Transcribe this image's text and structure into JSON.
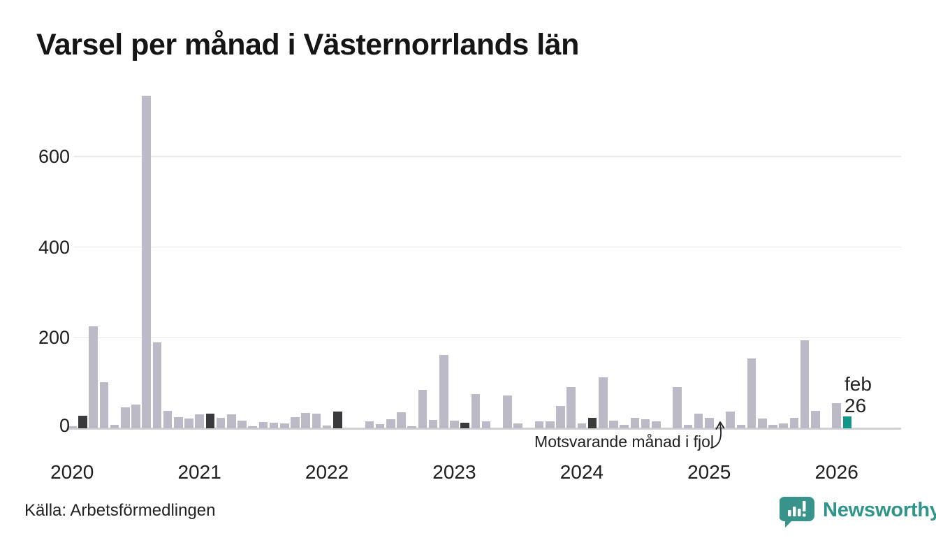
{
  "title": "Varsel per månad i Västernorrlands län",
  "source": "Källa: Arbetsförmedlingen",
  "brand": {
    "name": "Newsworthy",
    "color": "#2f948a"
  },
  "annotation": {
    "text": "Motsvarande månad i fjol",
    "target_month": "2025-02"
  },
  "highlight_label": {
    "line1": "feb",
    "line2": "26"
  },
  "colors": {
    "bar": "#bdbac8",
    "bar_last_year": "#3a393c",
    "bar_highlight": "#11978a",
    "grid": "#e9e7ec",
    "axis_line": "#d2d0d6",
    "text": "#1a1a1a"
  },
  "chart_data": {
    "type": "bar",
    "title": "Varsel per månad i Västernorrlands län",
    "ylabel": "",
    "xlabel": "",
    "yticks": [
      0,
      200,
      400,
      600
    ],
    "ylim": [
      0,
      760
    ],
    "grid": "horizontal",
    "legend": "none",
    "year_ticks": [
      {
        "label": "2020",
        "month_index": 0
      },
      {
        "label": "2021",
        "month_index": 12
      },
      {
        "label": "2022",
        "month_index": 24
      },
      {
        "label": "2023",
        "month_index": 36
      },
      {
        "label": "2024",
        "month_index": 48
      },
      {
        "label": "2025",
        "month_index": 60
      },
      {
        "label": "2026",
        "month_index": 72
      }
    ],
    "series_name": "Varsel per månad",
    "months": [
      {
        "m": "2020-01",
        "v": 5
      },
      {
        "m": "2020-02",
        "v": 27,
        "role": "last_year"
      },
      {
        "m": "2020-03",
        "v": 225
      },
      {
        "m": "2020-04",
        "v": 102
      },
      {
        "m": "2020-05",
        "v": 8
      },
      {
        "m": "2020-06",
        "v": 46
      },
      {
        "m": "2020-07",
        "v": 52
      },
      {
        "m": "2020-08",
        "v": 734
      },
      {
        "m": "2020-09",
        "v": 189
      },
      {
        "m": "2020-10",
        "v": 38
      },
      {
        "m": "2020-11",
        "v": 25
      },
      {
        "m": "2020-12",
        "v": 22
      },
      {
        "m": "2021-01",
        "v": 31
      },
      {
        "m": "2021-02",
        "v": 32,
        "role": "last_year"
      },
      {
        "m": "2021-03",
        "v": 23
      },
      {
        "m": "2021-04",
        "v": 31
      },
      {
        "m": "2021-05",
        "v": 17
      },
      {
        "m": "2021-06",
        "v": 5
      },
      {
        "m": "2021-07",
        "v": 14
      },
      {
        "m": "2021-08",
        "v": 12
      },
      {
        "m": "2021-09",
        "v": 11
      },
      {
        "m": "2021-10",
        "v": 25
      },
      {
        "m": "2021-11",
        "v": 34
      },
      {
        "m": "2021-12",
        "v": 32
      },
      {
        "m": "2022-01",
        "v": 6
      },
      {
        "m": "2022-02",
        "v": 37,
        "role": "last_year"
      },
      {
        "m": "2022-03",
        "v": 0
      },
      {
        "m": "2022-04",
        "v": 0
      },
      {
        "m": "2022-05",
        "v": 15
      },
      {
        "m": "2022-06",
        "v": 9
      },
      {
        "m": "2022-07",
        "v": 20
      },
      {
        "m": "2022-08",
        "v": 35
      },
      {
        "m": "2022-09",
        "v": 5
      },
      {
        "m": "2022-10",
        "v": 85
      },
      {
        "m": "2022-11",
        "v": 18
      },
      {
        "m": "2022-12",
        "v": 162
      },
      {
        "m": "2023-01",
        "v": 17
      },
      {
        "m": "2023-02",
        "v": 12,
        "role": "last_year"
      },
      {
        "m": "2023-03",
        "v": 75
      },
      {
        "m": "2023-04",
        "v": 15
      },
      {
        "m": "2023-05",
        "v": 0
      },
      {
        "m": "2023-06",
        "v": 72
      },
      {
        "m": "2023-07",
        "v": 11
      },
      {
        "m": "2023-08",
        "v": 0
      },
      {
        "m": "2023-09",
        "v": 15
      },
      {
        "m": "2023-10",
        "v": 15
      },
      {
        "m": "2023-11",
        "v": 49
      },
      {
        "m": "2023-12",
        "v": 91
      },
      {
        "m": "2024-01",
        "v": 11
      },
      {
        "m": "2024-02",
        "v": 23,
        "role": "last_year"
      },
      {
        "m": "2024-03",
        "v": 112
      },
      {
        "m": "2024-04",
        "v": 17
      },
      {
        "m": "2024-05",
        "v": 8
      },
      {
        "m": "2024-06",
        "v": 23
      },
      {
        "m": "2024-07",
        "v": 20
      },
      {
        "m": "2024-08",
        "v": 15
      },
      {
        "m": "2024-09",
        "v": 0
      },
      {
        "m": "2024-10",
        "v": 91
      },
      {
        "m": "2024-11",
        "v": 8
      },
      {
        "m": "2024-12",
        "v": 33
      },
      {
        "m": "2025-01",
        "v": 23
      },
      {
        "m": "2025-02",
        "v": 2,
        "role": "last_year"
      },
      {
        "m": "2025-03",
        "v": 37
      },
      {
        "m": "2025-04",
        "v": 8
      },
      {
        "m": "2025-05",
        "v": 154
      },
      {
        "m": "2025-06",
        "v": 22
      },
      {
        "m": "2025-07",
        "v": 8
      },
      {
        "m": "2025-08",
        "v": 11
      },
      {
        "m": "2025-09",
        "v": 23
      },
      {
        "m": "2025-10",
        "v": 194
      },
      {
        "m": "2025-11",
        "v": 38
      },
      {
        "m": "2025-12",
        "v": 0
      },
      {
        "m": "2026-01",
        "v": 55
      },
      {
        "m": "2026-02",
        "v": 26,
        "role": "current"
      }
    ]
  }
}
